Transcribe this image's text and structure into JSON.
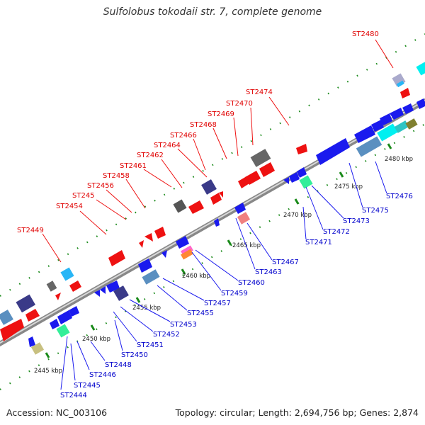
{
  "title": "Sulfolobus tokodaii str. 7, complete genome",
  "accession": "Accession: NC_003106",
  "summary": "Topology: circular; Length: 2,694,756 bp; Genes: 2,874",
  "kbp_labels": [
    "2445 kbp",
    "2450 kbp",
    "2455 kbp",
    "2460 kbp",
    "2465 kbp",
    "2470 kbp",
    "2475 kbp",
    "2480 kbp"
  ],
  "top_genes": [
    "ST2449",
    "ST2454",
    "ST245",
    "ST2456",
    "ST2458",
    "ST2461",
    "ST2462",
    "ST2464",
    "ST2466",
    "ST2468",
    "ST2469",
    "ST2470",
    "ST2474",
    "ST2480"
  ],
  "bottom_genes": [
    "ST2444",
    "ST2445",
    "ST2446",
    "ST2448",
    "ST2450",
    "ST2451",
    "ST2452",
    "ST2453",
    "ST2455",
    "ST2457",
    "ST2459",
    "ST2460",
    "ST2463",
    "ST2467",
    "ST2471",
    "ST2472",
    "ST2473",
    "ST2475",
    "ST2476"
  ],
  "colors": {
    "forward": "#ee1111",
    "reverse": "#1a1aee",
    "backbone": "#888888",
    "tick": "#1a8a1a"
  }
}
